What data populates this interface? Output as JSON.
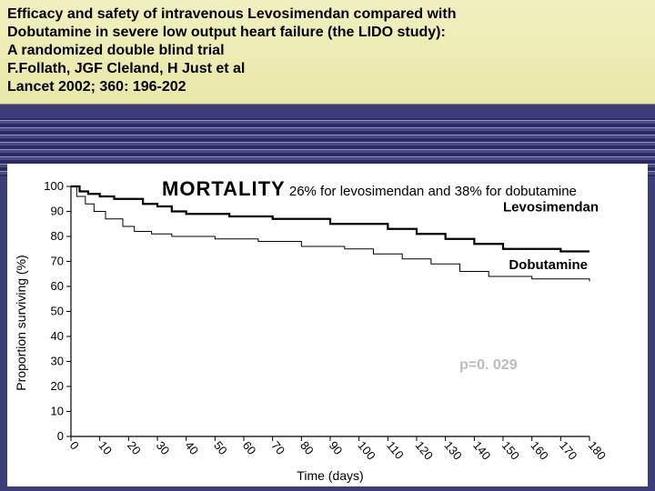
{
  "citation": {
    "line1": "Efficacy and safety of intravenous Levosimendan compared with",
    "line2": "Dobutamine in severe low output heart failure (the LIDO study):",
    "line3": "A randomized double blind trial",
    "line4": "F.Follath, JGF Cleland, H Just et al",
    "line5": "Lancet 2002; 360: 196-202"
  },
  "mortality": {
    "label": "MORTALITY",
    "summary": "26% for levosimendan and 38% for dobutamine"
  },
  "pvalue": "p=0. 029",
  "chart": {
    "type": "line",
    "title": "",
    "xlabel": "Time (days)",
    "ylabel": "Proportion surviving (%)",
    "xlim": [
      0,
      180
    ],
    "ylim": [
      0,
      100
    ],
    "xtick_step": 10,
    "ytick_step": 10,
    "background_color": "#ffffff",
    "axis_color": "#000000",
    "label_fontsize": 13,
    "axis_title_fontsize": 14,
    "line_width_levo": 2.2,
    "line_width_dobu": 1.0,
    "line_color": "#000000",
    "series": {
      "levosimendan": {
        "label": "Levosimendan",
        "label_pos_days": 150,
        "label_pos_pct": 90,
        "data": [
          [
            0,
            100
          ],
          [
            3,
            98
          ],
          [
            6,
            97
          ],
          [
            10,
            96
          ],
          [
            15,
            95
          ],
          [
            25,
            93
          ],
          [
            30,
            92
          ],
          [
            35,
            90
          ],
          [
            40,
            89
          ],
          [
            55,
            88
          ],
          [
            70,
            87
          ],
          [
            90,
            85
          ],
          [
            110,
            83
          ],
          [
            120,
            81
          ],
          [
            130,
            79
          ],
          [
            140,
            77
          ],
          [
            150,
            75
          ],
          [
            170,
            74
          ],
          [
            180,
            74
          ]
        ]
      },
      "dobutamine": {
        "label": "Dobutamine",
        "label_pos_days": 152,
        "label_pos_pct": 67,
        "data": [
          [
            0,
            100
          ],
          [
            2,
            96
          ],
          [
            5,
            93
          ],
          [
            8,
            90
          ],
          [
            12,
            87
          ],
          [
            18,
            84
          ],
          [
            22,
            82
          ],
          [
            28,
            81
          ],
          [
            35,
            80
          ],
          [
            50,
            79
          ],
          [
            65,
            78
          ],
          [
            80,
            76
          ],
          [
            95,
            75
          ],
          [
            105,
            73
          ],
          [
            115,
            71
          ],
          [
            125,
            69
          ],
          [
            135,
            66
          ],
          [
            145,
            64
          ],
          [
            160,
            63
          ],
          [
            180,
            62
          ]
        ]
      }
    }
  },
  "colors": {
    "slide_bg": "#3d3d7a",
    "citation_bg_top": "#f0f0c0",
    "citation_bg_bottom": "#e8e8a8",
    "pvalue_color": "#bcbcbc"
  }
}
